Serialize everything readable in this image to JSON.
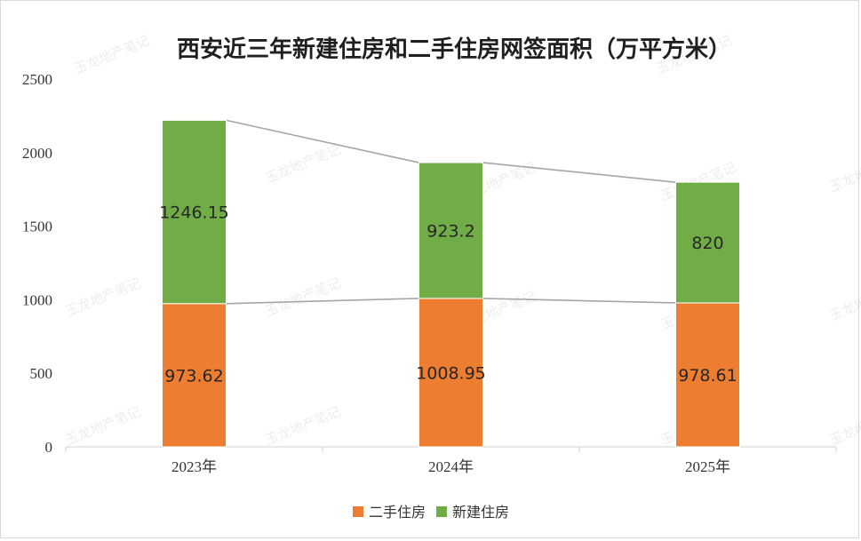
{
  "chart_data": {
    "type": "bar",
    "stacked": true,
    "title": "西安近三年新建住房和二手住房网签面积（万平方米）",
    "categories": [
      "2023年",
      "2024年",
      "2025年"
    ],
    "series": [
      {
        "name": "二手住房",
        "color": "#ed7d31",
        "values": [
          973.62,
          1008.95,
          978.61
        ],
        "labels": [
          "973.62",
          "1008.95",
          "978.61"
        ]
      },
      {
        "name": "新建住房",
        "color": "#70ad47",
        "values": [
          1246.15,
          923.2,
          820
        ],
        "labels": [
          "1246.15",
          "923.2",
          "820"
        ]
      }
    ],
    "ylim": [
      0,
      2500
    ],
    "yticks": [
      0,
      500,
      1000,
      1500,
      2000,
      2500
    ],
    "xlabel": "",
    "ylabel": "",
    "grid": false,
    "legend": "bottom",
    "series_lines": true
  },
  "watermark": "玉龙地产笔记"
}
